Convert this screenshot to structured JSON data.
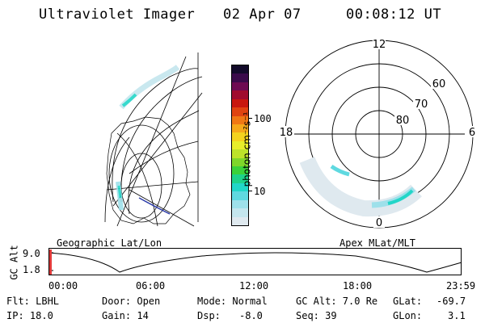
{
  "header": {
    "instrument": "Ultraviolet Imager",
    "date": "02 Apr 07",
    "time": "00:08:12 UT"
  },
  "map_left": {
    "caption": "Geographic Lat/Lon"
  },
  "map_right": {
    "caption": "Apex MLat/MLT",
    "mlt_labels": [
      "12",
      "18",
      "6",
      "0"
    ],
    "lat_labels": [
      "60",
      "70",
      "80"
    ]
  },
  "colorbar": {
    "unit_label": "photon cm⁻²s⁻¹",
    "ticks": [
      "100",
      "10"
    ],
    "colors": [
      "#dfe9ef",
      "#c4e6ee",
      "#9ee0ea",
      "#5fd9e0",
      "#22d6c8",
      "#1ed28a",
      "#3ad23a",
      "#7ed62a",
      "#bde22a",
      "#e8ee2a",
      "#f4d21e",
      "#f6a81a",
      "#f07814",
      "#e04410",
      "#c8180e",
      "#a00c2e",
      "#6e0a52",
      "#3a0a4a",
      "#120a2a"
    ]
  },
  "altitude_plot": {
    "ylabel": "GC Alt",
    "yticks": [
      "9.0",
      "1.8"
    ],
    "xticks": [
      "00:00",
      "06:00",
      "12:00",
      "18:00",
      "23:59"
    ]
  },
  "info": {
    "filter": "Flt: LBHL",
    "door": "Door: Open",
    "mode": "Mode: Normal",
    "gc_alt": "GC Alt: 7.0 Re",
    "glat_label": "GLat:",
    "glat_value": "-69.7",
    "ip": "IP: 18.0",
    "gain": "Gain: 14",
    "dsp_label": "Dsp:",
    "dsp_value": "-8.0",
    "seq": "Seq: 39",
    "glon_label": "GLon:",
    "glon_value": "3.1"
  }
}
